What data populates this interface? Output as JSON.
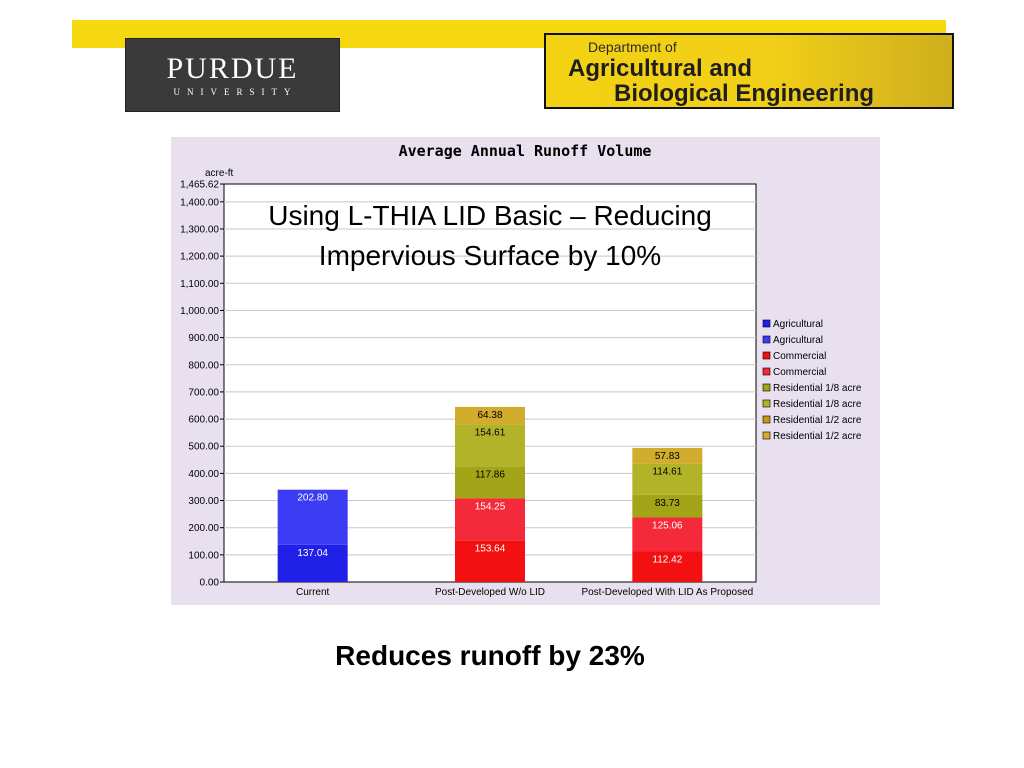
{
  "header": {
    "purdue_logo": {
      "main": "PURDUE",
      "sub": "UNIVERSITY"
    },
    "dept_logo": {
      "line1": "Department of",
      "line2": "Agricultural and",
      "line3": "Biological Engineering"
    }
  },
  "overlay_title": "Using L-THIA LID Basic – Reducing Impervious Surface by 10%",
  "footer_text": "Reduces runoff by 23%",
  "colors": {
    "banner": "#f5d80f",
    "panel_bg": "#e8e0ee",
    "agricultural_dark": "#2020e8",
    "agricultural_light": "#3c3cf4",
    "commercial_dark": "#f21010",
    "commercial_light": "#f42a3a",
    "residential_18_dark": "#a4a418",
    "residential_18_light": "#b3b32a",
    "residential_12_dark": "#c49c1c",
    "residential_12_light": "#d2ac2c"
  },
  "chart_data": {
    "type": "bar",
    "stacked": true,
    "title": "Average Annual Runoff Volume",
    "ylabel": "acre-ft",
    "xlabel": "",
    "ylim": [
      0,
      1465.62
    ],
    "y_ticks": [
      "0.00",
      "100.00",
      "200.00",
      "300.00",
      "400.00",
      "500.00",
      "600.00",
      "700.00",
      "800.00",
      "900.00",
      "1,000.00",
      "1,100.00",
      "1,200.00",
      "1,300.00",
      "1,400.00",
      "1,465.62"
    ],
    "y_tick_values": [
      0,
      100,
      200,
      300,
      400,
      500,
      600,
      700,
      800,
      900,
      1000,
      1100,
      1200,
      1300,
      1400,
      1465.62
    ],
    "grid": true,
    "legend_position": "right",
    "categories": [
      "Current",
      "Post-Developed W/o LID",
      "Post-Developed With LID As Proposed"
    ],
    "series": [
      {
        "name": "Agricultural",
        "color": "#2020e8",
        "values": [
          137.04,
          0,
          0
        ],
        "labels": [
          "137.04",
          "",
          ""
        ]
      },
      {
        "name": "Agricultural",
        "color": "#3c3cf4",
        "values": [
          202.8,
          0,
          0
        ],
        "labels": [
          "202.80",
          "",
          ""
        ]
      },
      {
        "name": "Commercial",
        "color": "#f21010",
        "values": [
          0,
          153.64,
          112.42
        ],
        "labels": [
          "",
          "153.64",
          "112.42"
        ]
      },
      {
        "name": "Commercial",
        "color": "#f42a3a",
        "values": [
          0,
          154.25,
          125.06
        ],
        "labels": [
          "",
          "154.25",
          "125.06"
        ]
      },
      {
        "name": "Residential 1/8 acre",
        "color": "#a4a418",
        "values": [
          0,
          117.86,
          83.73
        ],
        "labels": [
          "",
          "117.86",
          "83.73"
        ]
      },
      {
        "name": "Residential 1/8 acre",
        "color": "#b3b32a",
        "values": [
          0,
          154.61,
          114.61
        ],
        "labels": [
          "",
          "154.61",
          "114.61"
        ]
      },
      {
        "name": "Residential 1/2 acre",
        "color": "#c49c1c",
        "values": [
          0,
          0,
          0
        ],
        "labels": [
          "",
          "",
          ""
        ]
      },
      {
        "name": "Residential 1/2 acre",
        "color": "#d2ac2c",
        "values": [
          0,
          64.38,
          57.83
        ],
        "labels": [
          "",
          "64.38",
          "57.83"
        ]
      }
    ]
  }
}
